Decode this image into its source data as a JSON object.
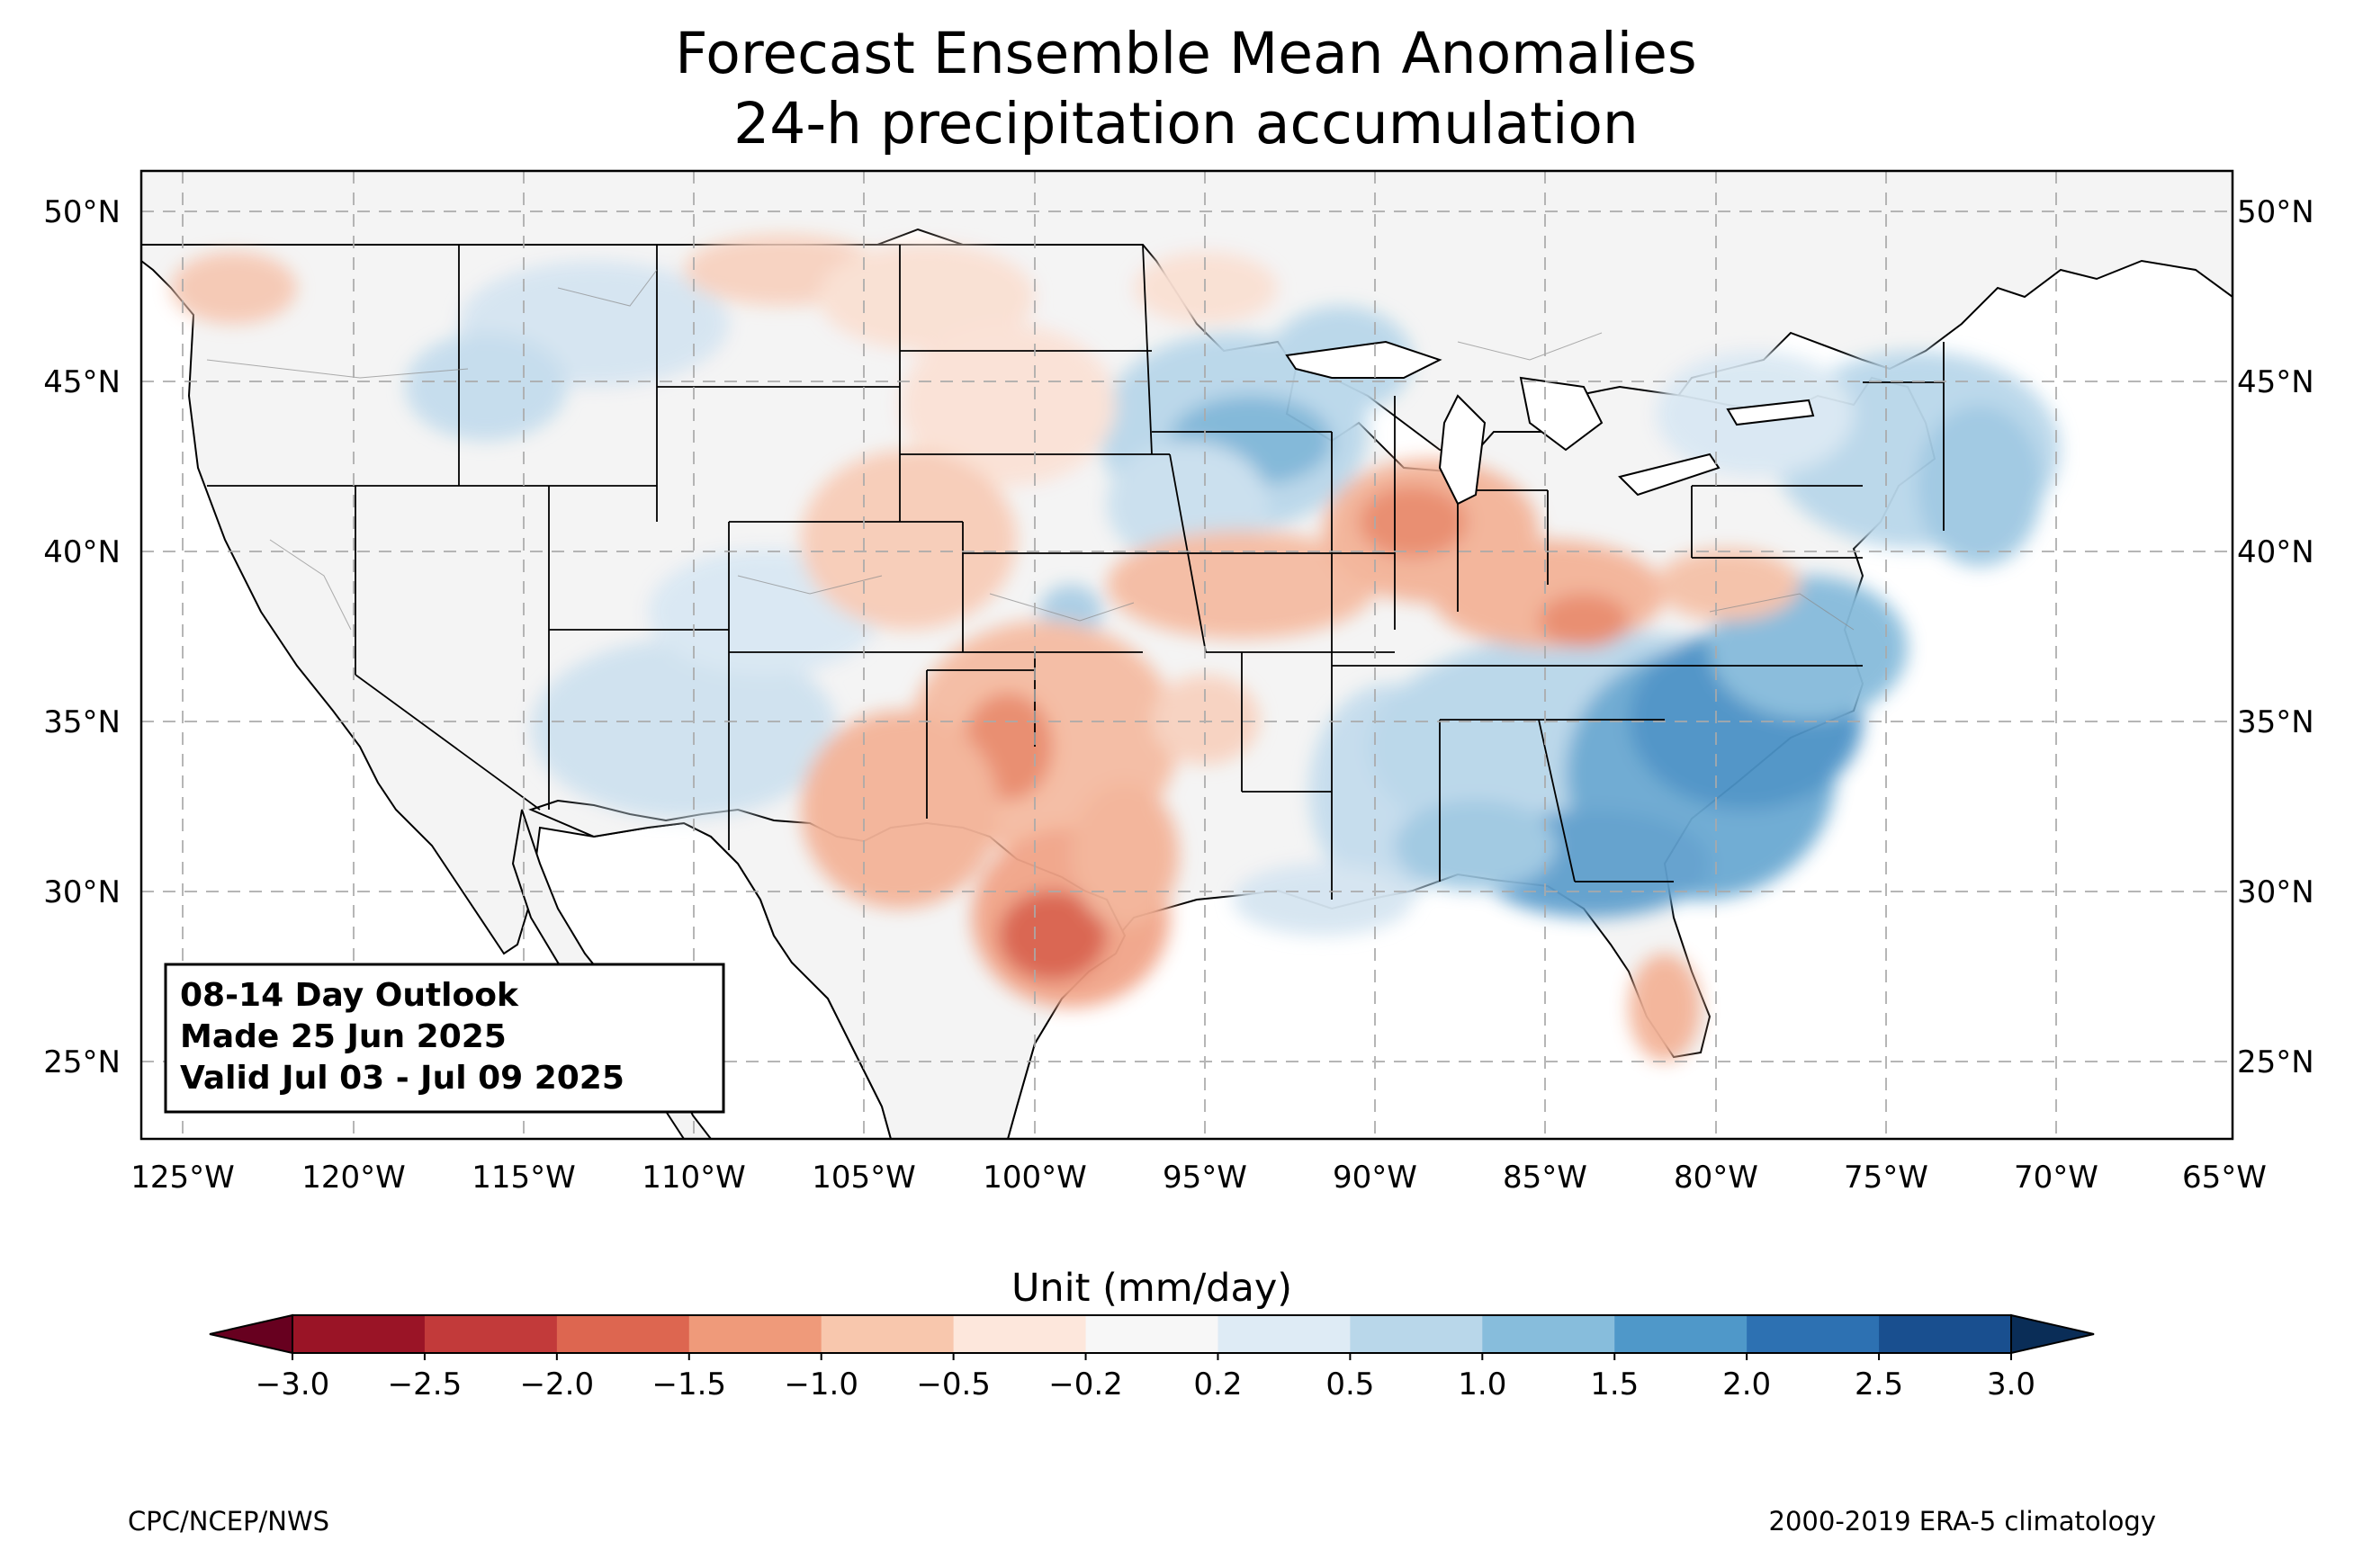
{
  "title": {
    "line1": "Forecast Ensemble Mean Anomalies",
    "line2": "24-h precipitation accumulation"
  },
  "map": {
    "lon_ticks": [
      "125°W",
      "120°W",
      "115°W",
      "110°W",
      "105°W",
      "100°W",
      "95°W",
      "90°W",
      "85°W",
      "80°W",
      "75°W",
      "70°W",
      "65°W"
    ],
    "lat_ticks": [
      "50°N",
      "45°N",
      "40°N",
      "35°N",
      "30°N",
      "25°N"
    ],
    "land_color": "#f4f4f4",
    "grid": "dashed"
  },
  "outlook_box": {
    "line1": "08-14 Day Outlook",
    "line2": "Made 25 Jun 2025",
    "line3": "Valid Jul 03 - Jul 09 2025"
  },
  "colorbar": {
    "label": "Unit (mm/day)",
    "ticks": [
      "−3.0",
      "−2.5",
      "−2.0",
      "−1.5",
      "−1.0",
      "−0.5",
      "−0.2",
      "0.2",
      "0.5",
      "1.0",
      "1.5",
      "2.0",
      "2.5",
      "3.0"
    ],
    "colors": [
      "#9a1426",
      "#c23a3a",
      "#dd6650",
      "#ef9a7a",
      "#f8c7ad",
      "#fde7dc",
      "#f7f7f7",
      "#deebf5",
      "#b9d7ea",
      "#87bddc",
      "#4f98c9",
      "#2d71b2",
      "#194f8f"
    ],
    "under_color": "#67001f",
    "over_color": "#0a2d57"
  },
  "footer": {
    "left": "CPC/NCEP/NWS",
    "right": "2000-2019 ERA-5 climatology"
  }
}
